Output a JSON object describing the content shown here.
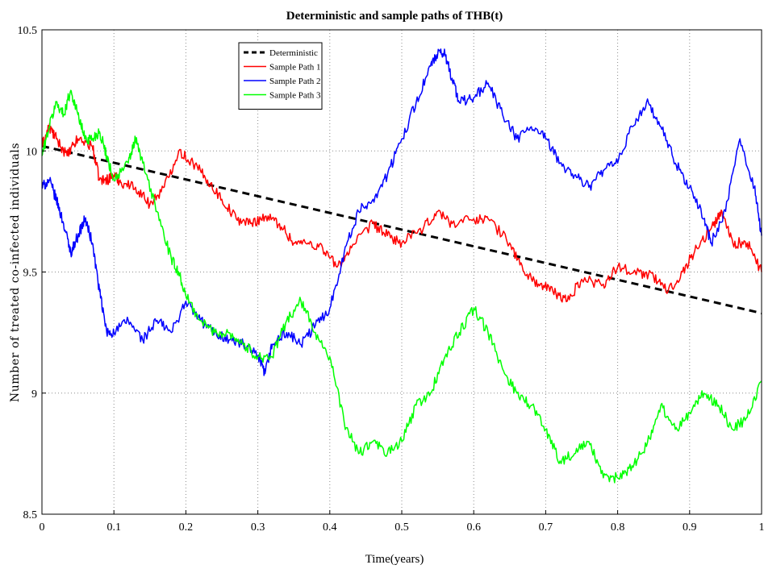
{
  "chart_data": {
    "type": "line",
    "title": "Deterministic and sample paths of THB(t)",
    "xlabel": "Time(years)",
    "ylabel": "Number of treated co-infected individuals",
    "xlim": [
      0,
      1
    ],
    "ylim": [
      8.5,
      10.5
    ],
    "grid": true,
    "legend_position": "top-left inside plot area",
    "x_ticks": [
      "0",
      "0.1",
      "0.2",
      "0.3",
      "0.4",
      "0.5",
      "0.6",
      "0.7",
      "0.8",
      "0.9",
      "1"
    ],
    "y_ticks": [
      "8.5",
      "9",
      "9.5",
      "10",
      "10.5"
    ],
    "series": [
      {
        "name": "Deterministic",
        "color": "#000000",
        "style": "dashed",
        "x": [
          0,
          1
        ],
        "values": [
          10.02,
          9.33
        ]
      },
      {
        "name": "Sample Path 1",
        "color": "#ff0000",
        "style": "solid",
        "x": [
          0,
          0.01,
          0.02,
          0.035,
          0.05,
          0.07,
          0.08,
          0.09,
          0.1,
          0.11,
          0.13,
          0.15,
          0.17,
          0.19,
          0.21,
          0.23,
          0.25,
          0.27,
          0.29,
          0.31,
          0.33,
          0.35,
          0.37,
          0.39,
          0.41,
          0.43,
          0.46,
          0.48,
          0.5,
          0.53,
          0.55,
          0.57,
          0.6,
          0.62,
          0.65,
          0.67,
          0.69,
          0.71,
          0.73,
          0.75,
          0.78,
          0.8,
          0.83,
          0.85,
          0.87,
          0.89,
          0.91,
          0.93,
          0.945,
          0.96,
          0.98,
          1.0
        ],
        "values": [
          10.02,
          10.1,
          10.05,
          9.98,
          10.05,
          10.02,
          9.88,
          9.88,
          9.9,
          9.87,
          9.85,
          9.78,
          9.85,
          10.0,
          9.95,
          9.88,
          9.8,
          9.72,
          9.7,
          9.73,
          9.7,
          9.62,
          9.62,
          9.6,
          9.52,
          9.6,
          9.7,
          9.65,
          9.62,
          9.68,
          9.75,
          9.7,
          9.72,
          9.72,
          9.62,
          9.5,
          9.45,
          9.42,
          9.38,
          9.47,
          9.45,
          9.52,
          9.5,
          9.48,
          9.42,
          9.5,
          9.6,
          9.68,
          9.75,
          9.62,
          9.62,
          9.5
        ]
      },
      {
        "name": "Sample Path 2",
        "color": "#0000ff",
        "style": "solid",
        "x": [
          0,
          0.01,
          0.02,
          0.03,
          0.04,
          0.05,
          0.06,
          0.07,
          0.08,
          0.09,
          0.1,
          0.12,
          0.14,
          0.16,
          0.18,
          0.2,
          0.22,
          0.24,
          0.26,
          0.28,
          0.3,
          0.31,
          0.32,
          0.34,
          0.36,
          0.38,
          0.4,
          0.42,
          0.44,
          0.46,
          0.48,
          0.5,
          0.52,
          0.54,
          0.55,
          0.56,
          0.57,
          0.58,
          0.6,
          0.62,
          0.64,
          0.66,
          0.68,
          0.7,
          0.72,
          0.74,
          0.76,
          0.78,
          0.8,
          0.82,
          0.84,
          0.86,
          0.88,
          0.9,
          0.92,
          0.93,
          0.95,
          0.97,
          0.99,
          1.0
        ],
        "values": [
          9.85,
          9.88,
          9.8,
          9.7,
          9.58,
          9.65,
          9.72,
          9.62,
          9.42,
          9.25,
          9.25,
          9.3,
          9.22,
          9.3,
          9.25,
          9.38,
          9.3,
          9.25,
          9.22,
          9.2,
          9.15,
          9.08,
          9.2,
          9.25,
          9.2,
          9.28,
          9.35,
          9.58,
          9.75,
          9.8,
          9.9,
          10.05,
          10.2,
          10.35,
          10.4,
          10.4,
          10.3,
          10.2,
          10.22,
          10.28,
          10.15,
          10.05,
          10.1,
          10.05,
          9.95,
          9.9,
          9.85,
          9.92,
          9.95,
          10.1,
          10.2,
          10.1,
          9.95,
          9.85,
          9.72,
          9.62,
          9.75,
          10.05,
          9.85,
          9.65
        ]
      },
      {
        "name": "Sample Path 3",
        "color": "#00ff00",
        "style": "solid",
        "x": [
          0,
          0.01,
          0.02,
          0.03,
          0.04,
          0.05,
          0.06,
          0.07,
          0.08,
          0.09,
          0.1,
          0.12,
          0.13,
          0.14,
          0.16,
          0.18,
          0.19,
          0.2,
          0.22,
          0.24,
          0.26,
          0.28,
          0.3,
          0.32,
          0.34,
          0.36,
          0.38,
          0.4,
          0.42,
          0.44,
          0.46,
          0.48,
          0.5,
          0.52,
          0.54,
          0.56,
          0.58,
          0.6,
          0.62,
          0.64,
          0.66,
          0.68,
          0.7,
          0.72,
          0.74,
          0.76,
          0.78,
          0.8,
          0.82,
          0.84,
          0.86,
          0.88,
          0.9,
          0.92,
          0.94,
          0.96,
          0.98,
          1.0
        ],
        "values": [
          9.98,
          10.1,
          10.2,
          10.15,
          10.25,
          10.15,
          10.05,
          10.05,
          10.08,
          9.98,
          9.88,
          9.95,
          10.05,
          9.95,
          9.75,
          9.55,
          9.5,
          9.4,
          9.3,
          9.25,
          9.25,
          9.2,
          9.15,
          9.15,
          9.3,
          9.38,
          9.25,
          9.15,
          8.88,
          8.75,
          8.8,
          8.75,
          8.8,
          8.95,
          9.0,
          9.15,
          9.25,
          9.35,
          9.25,
          9.1,
          9.0,
          8.95,
          8.85,
          8.72,
          8.75,
          8.8,
          8.65,
          8.65,
          8.7,
          8.78,
          8.95,
          8.85,
          8.92,
          9.0,
          8.95,
          8.85,
          8.9,
          9.05
        ]
      }
    ]
  }
}
